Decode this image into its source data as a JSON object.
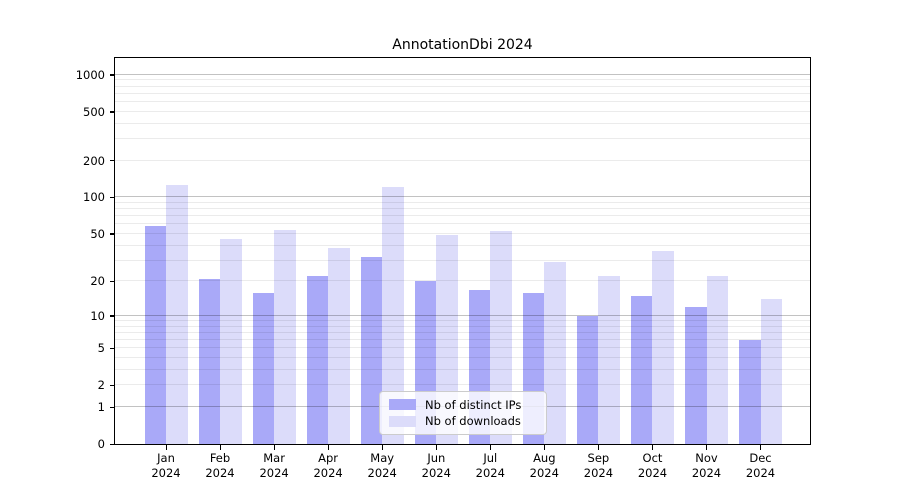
{
  "chart_data": {
    "type": "bar",
    "title": "AnnotationDbi 2024",
    "categories": [
      "Jan",
      "Feb",
      "Mar",
      "Apr",
      "May",
      "Jun",
      "Jul",
      "Aug",
      "Sep",
      "Oct",
      "Nov",
      "Dec"
    ],
    "year": "2024",
    "series": [
      {
        "name": "Nb of distinct IPs",
        "color": "#a9a9f8",
        "values": [
          58,
          21,
          16,
          22,
          32,
          20,
          17,
          16,
          10,
          15,
          12,
          6
        ]
      },
      {
        "name": "Nb of downloads",
        "color": "#dcdcfa",
        "values": [
          127,
          45,
          54,
          38,
          121,
          49,
          53,
          29,
          22,
          36,
          22,
          14
        ]
      }
    ],
    "y_ticks": [
      0,
      1,
      2,
      5,
      10,
      20,
      50,
      100,
      200,
      500,
      1000
    ],
    "y_scale": "log1p",
    "ylim": [
      0,
      1370
    ],
    "xlabel": "",
    "ylabel": "",
    "grid": true,
    "legend_position": "lower center"
  }
}
